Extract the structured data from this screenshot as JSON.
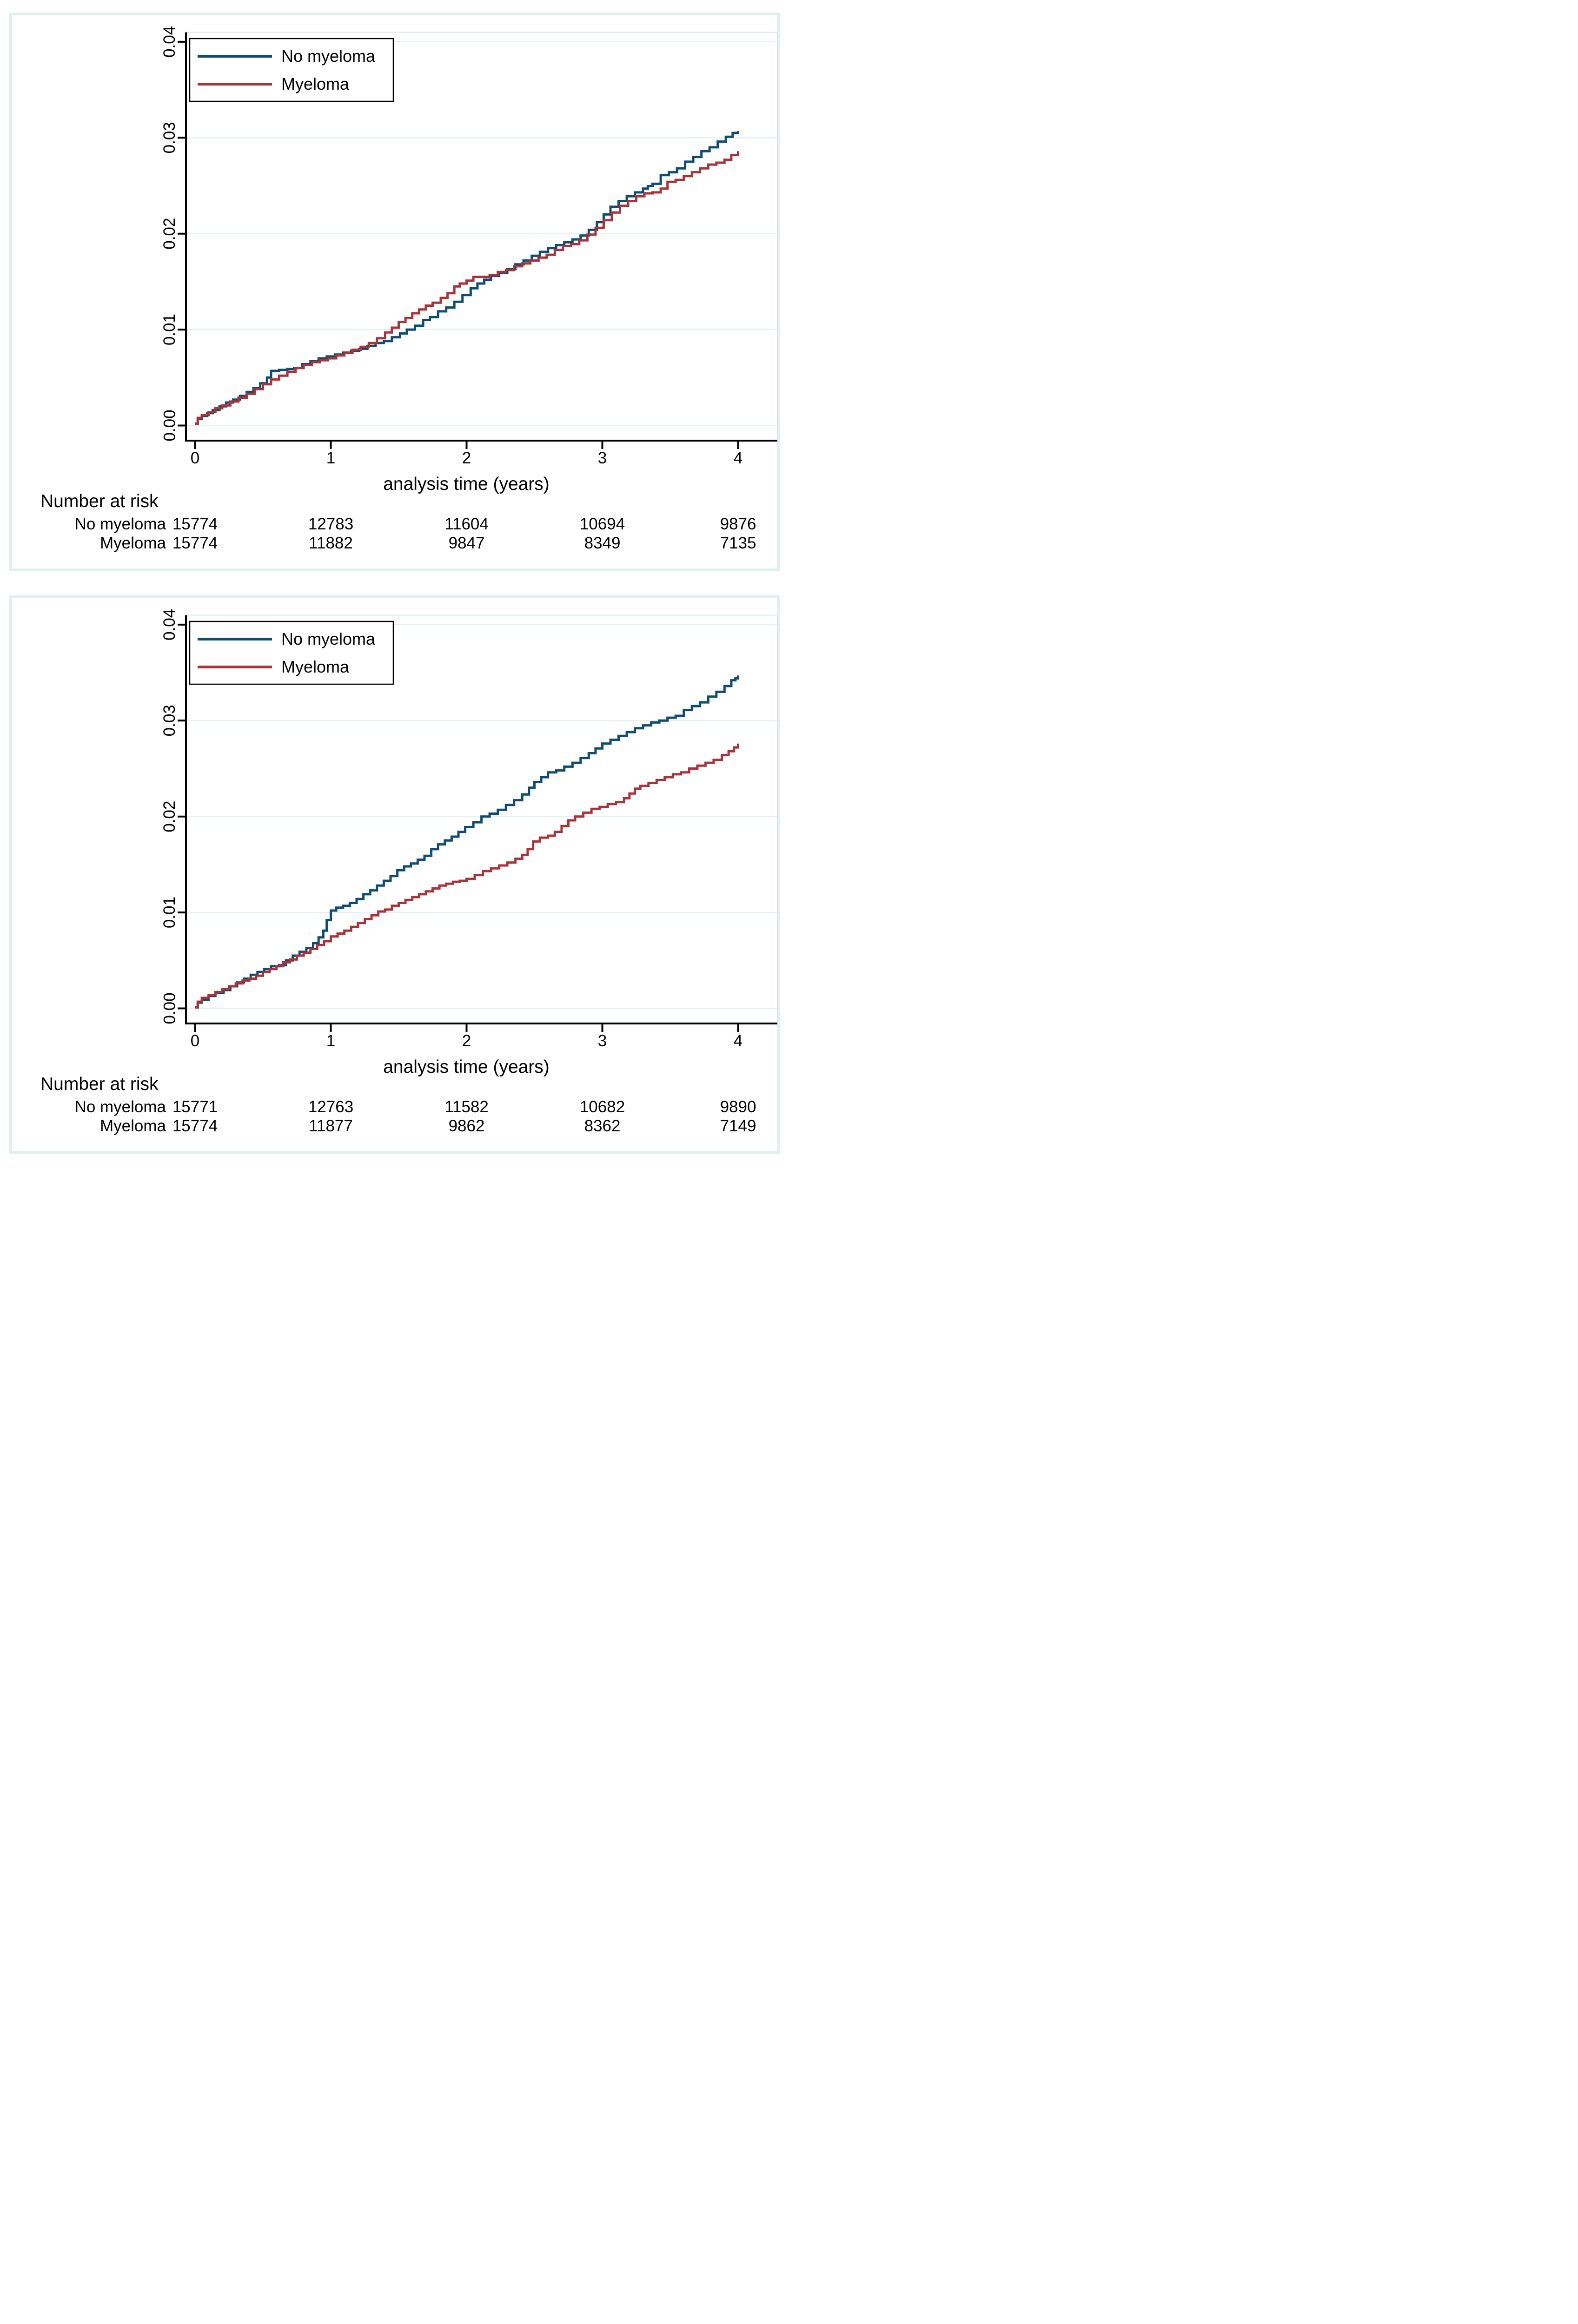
{
  "figure": {
    "background_color": "#ffffff",
    "panel_border_color": "#e2efee",
    "gridline_color": "#e5f0ef",
    "plot_border_color": "#d9e8e7",
    "axis_color": "#000000"
  },
  "chart_data": [
    {
      "type": "line",
      "subtype": "kaplan-meier-cumulative-incidence-step",
      "title": "",
      "xlabel": "analysis time (years)",
      "ylabel": "",
      "xlim": [
        0,
        4
      ],
      "ylim": [
        0,
        0.04
      ],
      "grid": true,
      "legend_position": "top-left-inside",
      "x_axis": {
        "title": "analysis time (years)",
        "ticks": [
          0,
          1,
          2,
          3,
          4
        ],
        "tick_labels": [
          "0",
          "1",
          "2",
          "3",
          "4"
        ]
      },
      "y_axis": {
        "ticks": [
          0.0,
          0.01,
          0.02,
          0.03,
          0.04
        ],
        "tick_labels": [
          "0.00",
          "0.01",
          "0.02",
          "0.03",
          "0.04"
        ]
      },
      "series": [
        {
          "name": "No myeloma",
          "color": "#0e4c72",
          "x": [
            0,
            0.02,
            0.05,
            0.09,
            0.13,
            0.18,
            0.23,
            0.28,
            0.33,
            0.38,
            0.43,
            0.48,
            0.53,
            0.56,
            0.62,
            0.68,
            0.73,
            0.79,
            0.85,
            0.91,
            0.97,
            1.03,
            1.09,
            1.15,
            1.21,
            1.27,
            1.33,
            1.39,
            1.45,
            1.51,
            1.56,
            1.62,
            1.68,
            1.73,
            1.79,
            1.85,
            1.91,
            1.97,
            2.03,
            2.08,
            2.13,
            2.18,
            2.24,
            2.3,
            2.36,
            2.42,
            2.48,
            2.54,
            2.6,
            2.66,
            2.72,
            2.78,
            2.84,
            2.9,
            2.96,
            3.01,
            3.06,
            3.12,
            3.18,
            3.24,
            3.3,
            3.37,
            3.43,
            3.49,
            3.55,
            3.61,
            3.67,
            3.73,
            3.79,
            3.85,
            3.91,
            3.96,
            4.0
          ],
          "y": [
            0.0002,
            0.0007,
            0.001,
            0.0013,
            0.0016,
            0.002,
            0.0024,
            0.0027,
            0.0031,
            0.0035,
            0.0039,
            0.0044,
            0.005,
            0.0057,
            0.0058,
            0.0059,
            0.006,
            0.0064,
            0.0067,
            0.007,
            0.0072,
            0.0074,
            0.0076,
            0.0078,
            0.008,
            0.0083,
            0.0086,
            0.0088,
            0.0092,
            0.0096,
            0.01,
            0.0104,
            0.011,
            0.0113,
            0.0119,
            0.0123,
            0.0129,
            0.0136,
            0.0143,
            0.0148,
            0.0152,
            0.0156,
            0.0159,
            0.0163,
            0.0168,
            0.0172,
            0.0177,
            0.0181,
            0.0185,
            0.0188,
            0.0191,
            0.0194,
            0.0198,
            0.0204,
            0.0212,
            0.022,
            0.0228,
            0.0234,
            0.0239,
            0.0243,
            0.0247,
            0.0252,
            0.0261,
            0.0264,
            0.0268,
            0.0275,
            0.028,
            0.0286,
            0.029,
            0.0296,
            0.0301,
            0.0305,
            0.0307
          ]
        },
        {
          "name": "Myeloma",
          "color": "#a8343b",
          "x": [
            0,
            0.02,
            0.05,
            0.1,
            0.15,
            0.2,
            0.26,
            0.32,
            0.38,
            0.44,
            0.5,
            0.56,
            0.62,
            0.68,
            0.74,
            0.8,
            0.86,
            0.92,
            0.98,
            1.04,
            1.1,
            1.16,
            1.22,
            1.28,
            1.34,
            1.4,
            1.45,
            1.5,
            1.55,
            1.6,
            1.65,
            1.7,
            1.75,
            1.81,
            1.86,
            1.91,
            1.95,
            2.0,
            2.05,
            2.11,
            2.17,
            2.23,
            2.29,
            2.35,
            2.41,
            2.47,
            2.53,
            2.59,
            2.65,
            2.71,
            2.77,
            2.83,
            2.89,
            2.95,
            3.01,
            3.07,
            3.13,
            3.19,
            3.25,
            3.31,
            3.37,
            3.43,
            3.48,
            3.54,
            3.6,
            3.66,
            3.72,
            3.78,
            3.84,
            3.9,
            3.95,
            4.0
          ],
          "y": [
            0.0002,
            0.0008,
            0.0011,
            0.0014,
            0.0018,
            0.0021,
            0.0025,
            0.0029,
            0.0033,
            0.0038,
            0.0043,
            0.0048,
            0.0052,
            0.0056,
            0.006,
            0.0063,
            0.0066,
            0.0068,
            0.007,
            0.0073,
            0.0076,
            0.0079,
            0.0082,
            0.0086,
            0.0091,
            0.0097,
            0.0102,
            0.0108,
            0.0112,
            0.0117,
            0.0121,
            0.0125,
            0.0128,
            0.0133,
            0.0138,
            0.0145,
            0.0148,
            0.0151,
            0.0155,
            0.0155,
            0.0157,
            0.016,
            0.0162,
            0.0166,
            0.0169,
            0.0172,
            0.0175,
            0.0178,
            0.0183,
            0.0187,
            0.0189,
            0.0193,
            0.0199,
            0.0206,
            0.0214,
            0.0222,
            0.0229,
            0.0234,
            0.0239,
            0.0242,
            0.0243,
            0.0247,
            0.0254,
            0.0256,
            0.026,
            0.0264,
            0.0268,
            0.0272,
            0.0274,
            0.0277,
            0.0282,
            0.0286
          ]
        }
      ],
      "risk_table": {
        "title": "Number at risk",
        "time_points": [
          0,
          1,
          2,
          3,
          4
        ],
        "rows": [
          {
            "label": "No myeloma",
            "values": [
              "15774",
              "12783",
              "11604",
              "10694",
              "9876"
            ]
          },
          {
            "label": "Myeloma",
            "values": [
              "15774",
              "11882",
              "9847",
              "8349",
              "7135"
            ]
          }
        ]
      }
    },
    {
      "type": "line",
      "subtype": "kaplan-meier-cumulative-incidence-step",
      "title": "",
      "xlabel": "analysis time (years)",
      "ylabel": "",
      "xlim": [
        0,
        4
      ],
      "ylim": [
        0,
        0.04
      ],
      "grid": true,
      "legend_position": "top-left-inside",
      "x_axis": {
        "title": "analysis time (years)",
        "ticks": [
          0,
          1,
          2,
          3,
          4
        ],
        "tick_labels": [
          "0",
          "1",
          "2",
          "3",
          "4"
        ]
      },
      "y_axis": {
        "ticks": [
          0.0,
          0.01,
          0.02,
          0.03,
          0.04
        ],
        "tick_labels": [
          "0.00",
          "0.01",
          "0.02",
          "0.03",
          "0.04"
        ]
      },
      "series": [
        {
          "name": "No myeloma",
          "color": "#0e4c72",
          "x": [
            0,
            0.02,
            0.05,
            0.1,
            0.15,
            0.21,
            0.26,
            0.31,
            0.36,
            0.41,
            0.46,
            0.51,
            0.56,
            0.62,
            0.67,
            0.72,
            0.77,
            0.82,
            0.87,
            0.91,
            0.945,
            0.97,
            1.0,
            1.04,
            1.09,
            1.14,
            1.19,
            1.24,
            1.29,
            1.34,
            1.39,
            1.44,
            1.49,
            1.54,
            1.59,
            1.64,
            1.69,
            1.74,
            1.79,
            1.84,
            1.89,
            1.94,
            1.99,
            2.05,
            2.11,
            2.17,
            2.23,
            2.29,
            2.35,
            2.41,
            2.46,
            2.5,
            2.55,
            2.6,
            2.66,
            2.72,
            2.78,
            2.84,
            2.9,
            2.95,
            3.0,
            3.06,
            3.12,
            3.18,
            3.24,
            3.3,
            3.36,
            3.42,
            3.48,
            3.54,
            3.6,
            3.66,
            3.72,
            3.78,
            3.84,
            3.9,
            3.95,
            3.98,
            4.0
          ],
          "y": [
            0.0001,
            0.0006,
            0.0009,
            0.0013,
            0.0016,
            0.0019,
            0.0023,
            0.0027,
            0.0031,
            0.0035,
            0.0038,
            0.0041,
            0.0044,
            0.0045,
            0.005,
            0.0055,
            0.0059,
            0.0063,
            0.0068,
            0.0074,
            0.0081,
            0.0092,
            0.0102,
            0.0105,
            0.0107,
            0.011,
            0.0114,
            0.0119,
            0.0123,
            0.0128,
            0.0133,
            0.0138,
            0.0144,
            0.0148,
            0.0151,
            0.0155,
            0.0159,
            0.0166,
            0.0171,
            0.0175,
            0.0179,
            0.0184,
            0.0189,
            0.0194,
            0.02,
            0.0203,
            0.0207,
            0.0212,
            0.0217,
            0.0223,
            0.023,
            0.0236,
            0.0241,
            0.0246,
            0.0248,
            0.0252,
            0.0256,
            0.0261,
            0.0266,
            0.0271,
            0.0276,
            0.028,
            0.0284,
            0.0288,
            0.0292,
            0.0295,
            0.0298,
            0.03,
            0.0303,
            0.0305,
            0.0311,
            0.0315,
            0.0319,
            0.0325,
            0.033,
            0.0336,
            0.0342,
            0.0344,
            0.0347
          ]
        },
        {
          "name": "Myeloma",
          "color": "#a8343b",
          "x": [
            0,
            0.02,
            0.05,
            0.1,
            0.15,
            0.2,
            0.25,
            0.3,
            0.35,
            0.4,
            0.45,
            0.5,
            0.55,
            0.6,
            0.65,
            0.7,
            0.75,
            0.8,
            0.85,
            0.9,
            0.95,
            1.0,
            1.05,
            1.1,
            1.15,
            1.2,
            1.25,
            1.3,
            1.35,
            1.4,
            1.45,
            1.5,
            1.55,
            1.6,
            1.65,
            1.7,
            1.75,
            1.8,
            1.85,
            1.9,
            1.95,
            2.0,
            2.06,
            2.12,
            2.18,
            2.24,
            2.3,
            2.36,
            2.41,
            2.45,
            2.49,
            2.54,
            2.6,
            2.65,
            2.7,
            2.75,
            2.8,
            2.86,
            2.92,
            2.98,
            3.04,
            3.1,
            3.16,
            3.2,
            3.24,
            3.28,
            3.34,
            3.4,
            3.46,
            3.52,
            3.58,
            3.64,
            3.7,
            3.76,
            3.82,
            3.88,
            3.93,
            3.97,
            4.0
          ],
          "y": [
            0.0001,
            0.0007,
            0.0011,
            0.0014,
            0.0017,
            0.002,
            0.0023,
            0.0026,
            0.0029,
            0.0031,
            0.0034,
            0.0038,
            0.0041,
            0.0044,
            0.0048,
            0.0051,
            0.0055,
            0.0058,
            0.0062,
            0.0066,
            0.007,
            0.0075,
            0.0078,
            0.0081,
            0.0085,
            0.0089,
            0.0093,
            0.0097,
            0.0101,
            0.0103,
            0.0107,
            0.011,
            0.0113,
            0.0116,
            0.0119,
            0.0122,
            0.0125,
            0.0128,
            0.013,
            0.0132,
            0.0133,
            0.0135,
            0.0139,
            0.0143,
            0.0146,
            0.0149,
            0.0152,
            0.0156,
            0.016,
            0.0166,
            0.0174,
            0.0178,
            0.018,
            0.0184,
            0.019,
            0.0196,
            0.02,
            0.0204,
            0.0208,
            0.021,
            0.0213,
            0.0215,
            0.0219,
            0.0224,
            0.0229,
            0.0232,
            0.0235,
            0.0238,
            0.0241,
            0.0244,
            0.0246,
            0.025,
            0.0253,
            0.0256,
            0.0259,
            0.0264,
            0.0268,
            0.0272,
            0.0276
          ]
        }
      ],
      "risk_table": {
        "title": "Number at risk",
        "time_points": [
          0,
          1,
          2,
          3,
          4
        ],
        "rows": [
          {
            "label": "No myeloma",
            "values": [
              "15771",
              "12763",
              "11582",
              "10682",
              "9890"
            ]
          },
          {
            "label": "Myeloma",
            "values": [
              "15774",
              "11877",
              "9862",
              "8362",
              "7149"
            ]
          }
        ]
      }
    }
  ]
}
